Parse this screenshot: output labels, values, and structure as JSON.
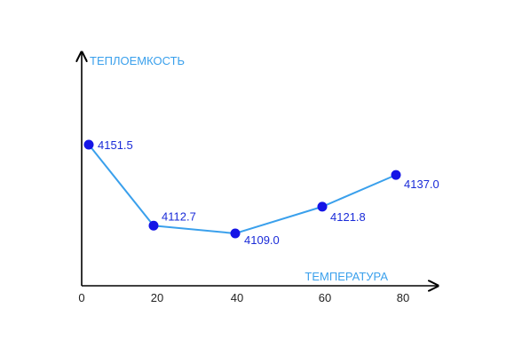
{
  "chart_data": {
    "type": "line",
    "title": "",
    "ylabel": "ТЕПЛОЕМКОСТЬ",
    "xlabel": "ТЕМПЕРАТУРА",
    "x": [
      0,
      20,
      40,
      60,
      80
    ],
    "y": [
      4151.5,
      4112.7,
      4109.0,
      4121.8,
      4137.0
    ],
    "point_labels": [
      "4151.5",
      "4112.7",
      "4109.0",
      "4121.8",
      "4137.0"
    ],
    "x_ticks": [
      "0",
      "20",
      "40",
      "60",
      "80"
    ],
    "grid": false,
    "legend": "none"
  },
  "colors": {
    "line": "#3aa0ec",
    "marker": "#1414e6",
    "axis": "#000000",
    "axis_title": "#3aa0ec",
    "data_label": "#1a2bd8",
    "tick_label": "#222222"
  }
}
